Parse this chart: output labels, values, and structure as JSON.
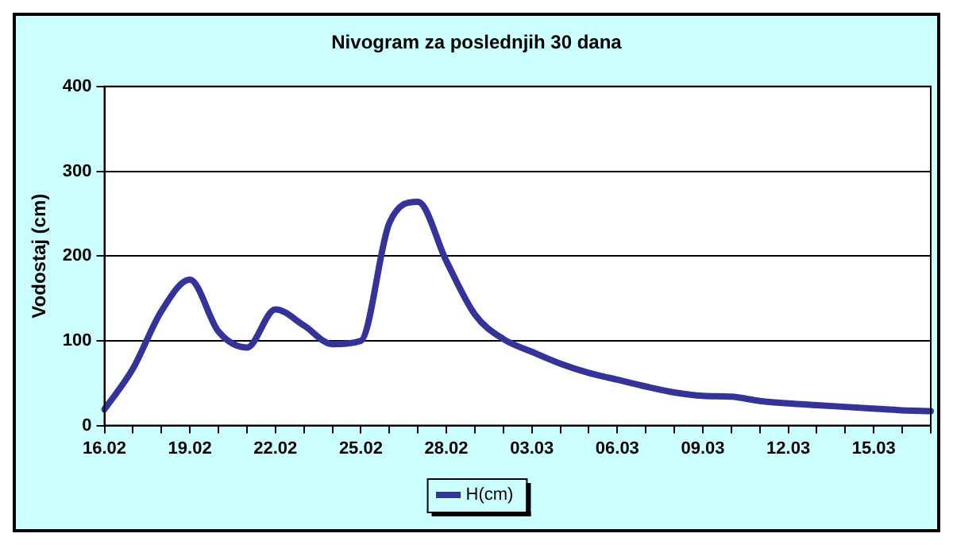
{
  "chart_data": {
    "type": "line",
    "title": "Nivogram za poslednjih 30 dana",
    "ylabel": "Vodostaj (cm)",
    "categories": [
      "16.02",
      null,
      null,
      "19.02",
      null,
      null,
      "22.02",
      null,
      null,
      "25.02",
      null,
      null,
      "28.02",
      null,
      null,
      "03.03",
      null,
      null,
      "06.03",
      null,
      null,
      "09.03",
      null,
      null,
      "12.03",
      null,
      null,
      "15.03",
      null,
      null
    ],
    "series": [
      {
        "name": "H(cm)",
        "color": "#333399",
        "values": [
          19,
          67,
          135,
          172,
          111,
          92,
          137,
          118,
          96,
          100,
          239,
          264,
          194,
          131,
          102,
          87,
          73,
          62,
          54,
          46,
          39,
          35,
          34,
          29,
          26,
          24,
          22,
          20,
          18,
          17
        ]
      }
    ],
    "ylim": [
      0,
      400
    ],
    "yticks": [
      0,
      100,
      200,
      300,
      400
    ],
    "grid": "y",
    "legend": "bottom",
    "marker": "none",
    "line_style": "solid"
  }
}
